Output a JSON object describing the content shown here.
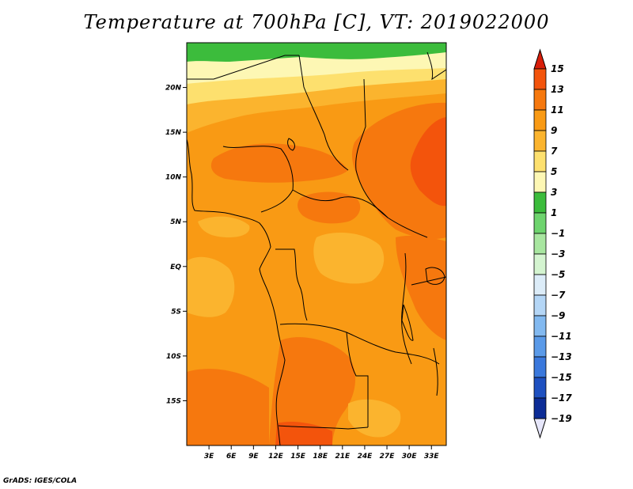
{
  "title": "Temperature at 700hPa [C], VT: 2019022000",
  "credit": "GrADS: IGES/COLA",
  "map": {
    "lon_range": [
      0,
      35
    ],
    "lat_range": [
      -20,
      25
    ],
    "lat_ticks": [
      {
        "value": 20,
        "label": "20N"
      },
      {
        "value": 15,
        "label": "15N"
      },
      {
        "value": 10,
        "label": "10N"
      },
      {
        "value": 5,
        "label": "5N"
      },
      {
        "value": 0,
        "label": "EQ"
      },
      {
        "value": -5,
        "label": "5S"
      },
      {
        "value": -10,
        "label": "10S"
      },
      {
        "value": -15,
        "label": "15S"
      }
    ],
    "lon_ticks": [
      {
        "value": 3,
        "label": "3E"
      },
      {
        "value": 6,
        "label": "6E"
      },
      {
        "value": 9,
        "label": "9E"
      },
      {
        "value": 12,
        "label": "12E"
      },
      {
        "value": 15,
        "label": "15E"
      },
      {
        "value": 18,
        "label": "18E"
      },
      {
        "value": 21,
        "label": "21E"
      },
      {
        "value": 24,
        "label": "24E"
      },
      {
        "value": 27,
        "label": "27E"
      },
      {
        "value": 30,
        "label": "30E"
      },
      {
        "value": 33,
        "label": "33E"
      }
    ]
  },
  "colorbar": {
    "levels": [
      15,
      13,
      11,
      9,
      7,
      5,
      3,
      1,
      -1,
      -3,
      -5,
      -7,
      -9,
      -11,
      -13,
      -15,
      -17,
      -19
    ],
    "labels": [
      "15",
      "13",
      "11",
      "9",
      "7",
      "5",
      "3",
      "1",
      "−1",
      "−3",
      "−5",
      "−7",
      "−9",
      "−11",
      "−13",
      "−15",
      "−17",
      "−19"
    ],
    "colors": [
      "#e8340f",
      "#f3540c",
      "#f6780e",
      "#f99a14",
      "#fbb42e",
      "#fde06e",
      "#fdf7b4",
      "#3cbc3c",
      "#6ed46e",
      "#a8e6a0",
      "#d4f4d0",
      "#dcecf8",
      "#b4d6f6",
      "#82b9f0",
      "#5a9ae8",
      "#3a78dc",
      "#1e50c0",
      "#0c2c96",
      "#060c60"
    ],
    "top_arrow_color": "#d81e0a",
    "bottom_arrow_color": "#e6e6fa"
  },
  "fill_colors": {
    "green": "#3cbc3c",
    "pale_yellow": "#fdf7b4",
    "light_yellow": "#fde06e",
    "light_orange": "#fbb42e",
    "orange": "#f99a14",
    "dark_orange": "#f6780e",
    "red_orange": "#f3540c"
  }
}
